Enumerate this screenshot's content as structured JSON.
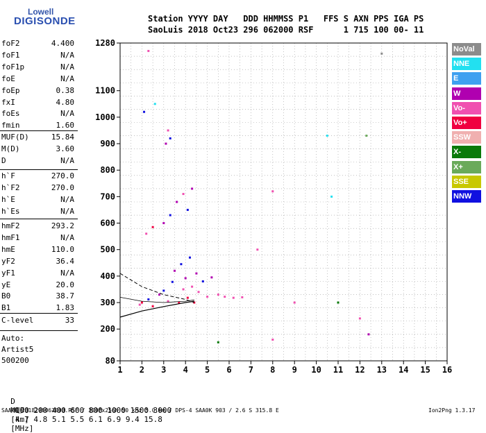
{
  "logo": {
    "top": "Lowell",
    "main": "DIGISONDE"
  },
  "header": {
    "line1": "Station YYYY DAY   DDD HHMMSS P1   FFS S AXN PPS IGA PS",
    "line2": "SaoLuis 2018 Oct23 296 062000 RSF      1 715 100 00- 11"
  },
  "params_group1": [
    {
      "name": "foF2",
      "value": "4.400"
    },
    {
      "name": "foF1",
      "value": "N/A"
    },
    {
      "name": "foF1p",
      "value": "N/A"
    },
    {
      "name": "foE",
      "value": "N/A"
    },
    {
      "name": "foEp",
      "value": "0.38"
    },
    {
      "name": "fxI",
      "value": "4.80"
    },
    {
      "name": "foEs",
      "value": "N/A"
    },
    {
      "name": "fmin",
      "value": "1.60"
    }
  ],
  "params_group2": [
    {
      "name": "MUF(D)",
      "value": "15.84"
    },
    {
      "name": "M(D)",
      "value": "3.60"
    },
    {
      "name": "D",
      "value": "N/A"
    }
  ],
  "params_group3": [
    {
      "name": "h`F",
      "value": "270.0"
    },
    {
      "name": "h`F2",
      "value": "270.0"
    },
    {
      "name": "h`E",
      "value": "N/A"
    },
    {
      "name": "h`Es",
      "value": "N/A"
    }
  ],
  "params_group4": [
    {
      "name": "hmF2",
      "value": "293.2"
    },
    {
      "name": "hmF1",
      "value": "N/A"
    },
    {
      "name": "hmE",
      "value": "110.0"
    },
    {
      "name": "yF2",
      "value": "36.4"
    },
    {
      "name": "yF1",
      "value": "N/A"
    },
    {
      "name": "yE",
      "value": "20.0"
    },
    {
      "name": "B0",
      "value": "38.7"
    },
    {
      "name": "B1",
      "value": "1.83"
    }
  ],
  "params_group5": [
    {
      "name": "C-level",
      "value": "33"
    }
  ],
  "scaling": {
    "line1": "Auto:",
    "line2": "Artist5",
    "line3": "500200"
  },
  "legend": [
    {
      "label": "NoVal",
      "color": "#8c8c8c"
    },
    {
      "label": "NNE",
      "color": "#22e0f0"
    },
    {
      "label": "E",
      "color": "#3ea0f0"
    },
    {
      "label": "W",
      "color": "#b000b0"
    },
    {
      "label": "Vo-",
      "color": "#f050b0"
    },
    {
      "label": "Vo+",
      "color": "#f00040"
    },
    {
      "label": "SSW",
      "color": "#f0b0b0"
    },
    {
      "label": "X-",
      "color": "#0a7a0a"
    },
    {
      "label": "X+",
      "color": "#6aaa5a"
    },
    {
      "label": "SSE",
      "color": "#c8c800"
    },
    {
      "label": "NNW",
      "color": "#1010e0"
    }
  ],
  "bottom_table": {
    "d_label": "D",
    "d_values": [
      "100",
      "200",
      "400",
      "600",
      "800",
      "1000",
      "1500",
      "3000"
    ],
    "d_unit": "[km]",
    "muf_label": "MUF",
    "muf_values": [
      "4.7",
      "4.8",
      "5.1",
      "5.5",
      "6.1",
      "6.9",
      "9.4",
      "15.8"
    ],
    "muf_unit": "[MHz]"
  },
  "footer": {
    "left": "SAA0K_2018296062000.RSF / 300fx256h 50 kHz 5.0 km / DPS-4 SAA0K 903 / 2.6 S 315.8 E",
    "right": "Ion2Png 1.3.17"
  },
  "chart_data": {
    "type": "scatter",
    "xlim": [
      1,
      16
    ],
    "ylim": [
      80,
      1280
    ],
    "x_ticks": [
      1,
      2,
      3,
      4,
      5,
      6,
      7,
      8,
      9,
      10,
      11,
      12,
      13,
      14,
      15,
      16
    ],
    "y_ticks": [
      80,
      200,
      300,
      400,
      500,
      600,
      700,
      800,
      900,
      1000,
      1100,
      1280
    ],
    "grid": true,
    "ionogram_scatter": [
      {
        "x": 1.9,
        "y": 292,
        "c": "#f050b0"
      },
      {
        "x": 2.0,
        "y": 300,
        "c": "#f00040"
      },
      {
        "x": 2.3,
        "y": 312,
        "c": "#1010e0"
      },
      {
        "x": 2.5,
        "y": 286,
        "c": "#f00040"
      },
      {
        "x": 2.8,
        "y": 330,
        "c": "#b000b0"
      },
      {
        "x": 3.0,
        "y": 345,
        "c": "#1010e0"
      },
      {
        "x": 3.2,
        "y": 305,
        "c": "#f050b0"
      },
      {
        "x": 3.4,
        "y": 378,
        "c": "#1010e0"
      },
      {
        "x": 3.5,
        "y": 420,
        "c": "#b000b0"
      },
      {
        "x": 3.7,
        "y": 300,
        "c": "#f00040"
      },
      {
        "x": 3.8,
        "y": 445,
        "c": "#1010e0"
      },
      {
        "x": 3.9,
        "y": 350,
        "c": "#f050b0"
      },
      {
        "x": 4.0,
        "y": 392,
        "c": "#b000b0"
      },
      {
        "x": 4.1,
        "y": 318,
        "c": "#f00040"
      },
      {
        "x": 4.2,
        "y": 470,
        "c": "#1010e0"
      },
      {
        "x": 4.3,
        "y": 360,
        "c": "#f050b0"
      },
      {
        "x": 4.4,
        "y": 300,
        "c": "#f00040"
      },
      {
        "x": 4.5,
        "y": 410,
        "c": "#b000b0"
      },
      {
        "x": 4.6,
        "y": 340,
        "c": "#f050b0"
      },
      {
        "x": 4.8,
        "y": 380,
        "c": "#1010e0"
      },
      {
        "x": 5.0,
        "y": 322,
        "c": "#f050b0"
      },
      {
        "x": 5.2,
        "y": 395,
        "c": "#b000b0"
      },
      {
        "x": 5.5,
        "y": 330,
        "c": "#f050b0"
      },
      {
        "x": 5.8,
        "y": 322,
        "c": "#f050b0"
      },
      {
        "x": 6.2,
        "y": 318,
        "c": "#f050b0"
      },
      {
        "x": 6.6,
        "y": 320,
        "c": "#f050b0"
      },
      {
        "x": 2.2,
        "y": 560,
        "c": "#f050b0"
      },
      {
        "x": 2.5,
        "y": 585,
        "c": "#f00040"
      },
      {
        "x": 3.0,
        "y": 600,
        "c": "#b000b0"
      },
      {
        "x": 3.3,
        "y": 630,
        "c": "#1010e0"
      },
      {
        "x": 3.6,
        "y": 680,
        "c": "#b000b0"
      },
      {
        "x": 3.9,
        "y": 710,
        "c": "#f050b0"
      },
      {
        "x": 4.1,
        "y": 650,
        "c": "#1010e0"
      },
      {
        "x": 4.3,
        "y": 730,
        "c": "#b000b0"
      },
      {
        "x": 3.1,
        "y": 900,
        "c": "#b000b0"
      },
      {
        "x": 3.2,
        "y": 950,
        "c": "#f050b0"
      },
      {
        "x": 3.3,
        "y": 920,
        "c": "#1010e0"
      },
      {
        "x": 2.1,
        "y": 1020,
        "c": "#1010e0"
      },
      {
        "x": 2.3,
        "y": 1250,
        "c": "#f050b0"
      },
      {
        "x": 2.6,
        "y": 1050,
        "c": "#22e0f0"
      },
      {
        "x": 7.3,
        "y": 500,
        "c": "#f050b0"
      },
      {
        "x": 8.0,
        "y": 720,
        "c": "#f050b0"
      },
      {
        "x": 9.0,
        "y": 300,
        "c": "#f050b0"
      },
      {
        "x": 10.5,
        "y": 930,
        "c": "#22e0f0"
      },
      {
        "x": 10.7,
        "y": 700,
        "c": "#22e0f0"
      },
      {
        "x": 12.0,
        "y": 240,
        "c": "#f050b0"
      },
      {
        "x": 12.4,
        "y": 180,
        "c": "#b000b0"
      },
      {
        "x": 12.3,
        "y": 930,
        "c": "#6aaa5a"
      },
      {
        "x": 13.0,
        "y": 1240,
        "c": "#8c8c8c"
      },
      {
        "x": 8.0,
        "y": 160,
        "c": "#f050b0"
      },
      {
        "x": 11.0,
        "y": 300,
        "c": "#0a7a0a"
      },
      {
        "x": 5.5,
        "y": 150,
        "c": "#0a7a0a"
      }
    ],
    "profile_solid": [
      [
        1.0,
        245
      ],
      [
        2.0,
        268
      ],
      [
        3.0,
        285
      ],
      [
        4.0,
        300
      ],
      [
        4.4,
        305
      ]
    ],
    "profile_dashed": [
      [
        1.0,
        410
      ],
      [
        2.0,
        360
      ],
      [
        3.0,
        330
      ],
      [
        4.0,
        312
      ],
      [
        4.4,
        300
      ]
    ],
    "profile_thin": [
      [
        1.0,
        320
      ],
      [
        2.0,
        305
      ],
      [
        3.0,
        300
      ],
      [
        4.0,
        305
      ],
      [
        4.4,
        310
      ]
    ]
  }
}
